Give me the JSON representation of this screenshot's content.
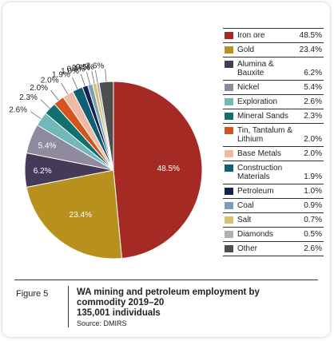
{
  "chart_data": {
    "type": "pie",
    "title": "WA mining and petroleum employment by commodity 2019–20",
    "slices": [
      {
        "label": "Iron ore",
        "value": 48.5,
        "display": "48.5%",
        "color": "#a52a24"
      },
      {
        "label": "Gold",
        "value": 23.4,
        "display": "23.4%",
        "color": "#b8901e"
      },
      {
        "label": "Alumina & Bauxite",
        "value": 6.2,
        "display": "6.2%",
        "color": "#453a57"
      },
      {
        "label": "Nickel",
        "value": 5.4,
        "display": "5.4%",
        "color": "#8f8a9e"
      },
      {
        "label": "Exploration",
        "value": 2.6,
        "display": "2.6%",
        "color": "#71b8b7"
      },
      {
        "label": "Mineral Sands",
        "value": 2.3,
        "display": "2.3%",
        "color": "#11706e"
      },
      {
        "label": "Tin, Tantalum & Lithium",
        "value": 2.0,
        "display": "2.0%",
        "color": "#d4541f"
      },
      {
        "label": "Base Metals",
        "value": 2.0,
        "display": "2.0%",
        "color": "#f0b9a3"
      },
      {
        "label": "Construction Materials",
        "value": 1.9,
        "display": "1.9%",
        "color": "#0d5f73"
      },
      {
        "label": "Petroleum",
        "value": 1.0,
        "display": "1.0%",
        "color": "#12234f"
      },
      {
        "label": "Coal",
        "value": 0.9,
        "display": "0.9%",
        "color": "#7b9fb9"
      },
      {
        "label": "Salt",
        "value": 0.7,
        "display": "0.7%",
        "color": "#d8c071"
      },
      {
        "label": "Diamonds",
        "value": 0.5,
        "display": "0.5%",
        "color": "#b1b1b1"
      },
      {
        "label": "Other",
        "value": 2.6,
        "display": "2.6%",
        "color": "#4e4e4e"
      }
    ]
  },
  "legend": {
    "rows": [
      {
        "label": "Iron ore",
        "value": "48.5%"
      },
      {
        "label": "Gold",
        "value": "23.4%"
      },
      {
        "label": "Alumina & Bauxite",
        "value": "6.2%"
      },
      {
        "label": "Nickel",
        "value": "5.4%"
      },
      {
        "label": "Exploration",
        "value": "2.6%"
      },
      {
        "label": "Mineral Sands",
        "value": "2.3%"
      },
      {
        "label": "Tin, Tantalum & Lithium",
        "value": "2.0%"
      },
      {
        "label": "Base Metals",
        "value": "2.0%"
      },
      {
        "label": "Construction Materials",
        "value": "1.9%"
      },
      {
        "label": "Petroleum",
        "value": "1.0%"
      },
      {
        "label": "Coal",
        "value": "0.9%"
      },
      {
        "label": "Salt",
        "value": "0.7%"
      },
      {
        "label": "Diamonds",
        "value": "0.5%"
      },
      {
        "label": "Other",
        "value": "2.6%"
      }
    ]
  },
  "caption": {
    "figure_label": "Figure 5",
    "title_line1": "WA mining and petroleum employment by",
    "title_line2": "commodity 2019–20",
    "subtitle": "135,001 individuals",
    "source": "Source: DMIRS"
  }
}
